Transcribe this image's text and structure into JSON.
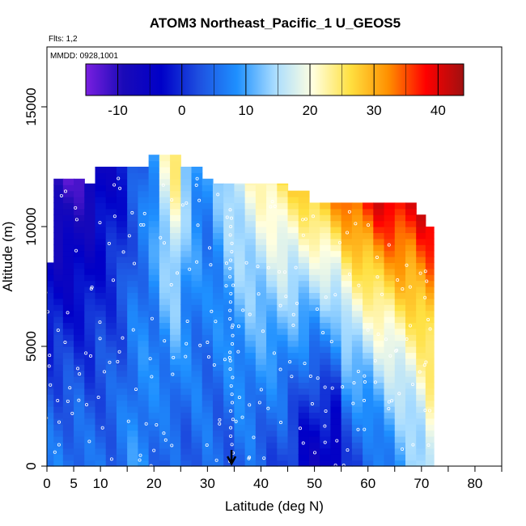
{
  "chart_data": {
    "type": "heatmap",
    "title": "ATOM3 Northeast_Pacific_1 U_GEOS5",
    "flights_label": "Flts: 1,2",
    "date_label": "MMDD: 0928,1001",
    "xlabel": "Latitude (deg N)",
    "ylabel": "Altitude (m)",
    "xlim": [
      0,
      85
    ],
    "ylim": [
      0,
      17500
    ],
    "x_ticks": [
      0,
      5,
      10,
      20,
      30,
      40,
      50,
      60,
      70,
      80
    ],
    "x_minor_ticks": [
      15,
      25,
      35,
      45,
      55,
      65,
      75,
      85
    ],
    "y_ticks": [
      0,
      5000,
      10000,
      15000
    ],
    "colorbar": {
      "min": -15,
      "max": 44,
      "ticks": [
        -10,
        0,
        10,
        20,
        30,
        40
      ],
      "colors": [
        "#7a1fe0",
        "#1a0ab8",
        "#0000c8",
        "#1e50e0",
        "#1e90ff",
        "#a8dcff",
        "#ffffe0",
        "#ffe040",
        "#ff9000",
        "#ff0000",
        "#a01010"
      ]
    },
    "columns": [
      {
        "lat": 0.5,
        "alt_max": 8500,
        "u_bot": 6,
        "u_top": -6
      },
      {
        "lat": 2,
        "alt_max": 12000,
        "u_bot": 6,
        "u_top": -12
      },
      {
        "lat": 4,
        "alt_max": 12000,
        "u_bot": 6,
        "u_top": -12
      },
      {
        "lat": 6,
        "alt_max": 12000,
        "u_bot": 6,
        "u_top": -11
      },
      {
        "lat": 8,
        "alt_max": 11800,
        "u_bot": 5,
        "u_top": -9
      },
      {
        "lat": 10,
        "alt_max": 12500,
        "u_bot": 5,
        "u_top": -6
      },
      {
        "lat": 12,
        "alt_max": 12500,
        "u_bot": 5,
        "u_top": -4
      },
      {
        "lat": 14,
        "alt_max": 12500,
        "u_bot": 6,
        "u_top": -2
      },
      {
        "lat": 16,
        "alt_max": 12500,
        "u_bot": 8,
        "u_top": 2
      },
      {
        "lat": 18,
        "alt_max": 12500,
        "u_bot": 8,
        "u_top": 5
      },
      {
        "lat": 20,
        "alt_max": 13000,
        "u_bot": 6,
        "u_top": 10
      },
      {
        "lat": 22,
        "alt_max": 13000,
        "u_bot": 4,
        "u_top": 20
      },
      {
        "lat": 24,
        "alt_max": 13000,
        "u_bot": 4,
        "u_top": 25
      },
      {
        "lat": 26,
        "alt_max": 12500,
        "u_bot": 4,
        "u_top": 15
      },
      {
        "lat": 28,
        "alt_max": 12500,
        "u_bot": 5,
        "u_top": 10
      },
      {
        "lat": 30,
        "alt_max": 12000,
        "u_bot": 5,
        "u_top": 8
      },
      {
        "lat": 32,
        "alt_max": 11800,
        "u_bot": 4,
        "u_top": 12
      },
      {
        "lat": 34,
        "alt_max": 11800,
        "u_bot": 4,
        "u_top": 16
      },
      {
        "lat": 36,
        "alt_max": 11800,
        "u_bot": 5,
        "u_top": 18
      },
      {
        "lat": 38,
        "alt_max": 11800,
        "u_bot": 5,
        "u_top": 20
      },
      {
        "lat": 40,
        "alt_max": 11800,
        "u_bot": 4,
        "u_top": 22
      },
      {
        "lat": 42,
        "alt_max": 11800,
        "u_bot": 3,
        "u_top": 24
      },
      {
        "lat": 44,
        "alt_max": 11800,
        "u_bot": 2,
        "u_top": 26
      },
      {
        "lat": 46,
        "alt_max": 11500,
        "u_bot": 0,
        "u_top": 26
      },
      {
        "lat": 48,
        "alt_max": 11500,
        "u_bot": -3,
        "u_top": 28
      },
      {
        "lat": 50,
        "alt_max": 11000,
        "u_bot": -5,
        "u_top": 28
      },
      {
        "lat": 52,
        "alt_max": 11000,
        "u_bot": -5,
        "u_top": 30
      },
      {
        "lat": 54,
        "alt_max": 11000,
        "u_bot": -6,
        "u_top": 32
      },
      {
        "lat": 56,
        "alt_max": 11000,
        "u_bot": 2,
        "u_top": 34
      },
      {
        "lat": 58,
        "alt_max": 11000,
        "u_bot": 3,
        "u_top": 36
      },
      {
        "lat": 60,
        "alt_max": 11000,
        "u_bot": 4,
        "u_top": 38
      },
      {
        "lat": 62,
        "alt_max": 11000,
        "u_bot": 6,
        "u_top": 40
      },
      {
        "lat": 64,
        "alt_max": 11000,
        "u_bot": 8,
        "u_top": 40
      },
      {
        "lat": 66,
        "alt_max": 11000,
        "u_bot": 10,
        "u_top": 40
      },
      {
        "lat": 68,
        "alt_max": 11000,
        "u_bot": 12,
        "u_top": 40
      },
      {
        "lat": 70,
        "alt_max": 10500,
        "u_bot": 14,
        "u_top": 40
      },
      {
        "lat": 71.5,
        "alt_max": 10000,
        "u_bot": 18,
        "u_top": 38
      }
    ],
    "arrow_lat": 34.5
  }
}
